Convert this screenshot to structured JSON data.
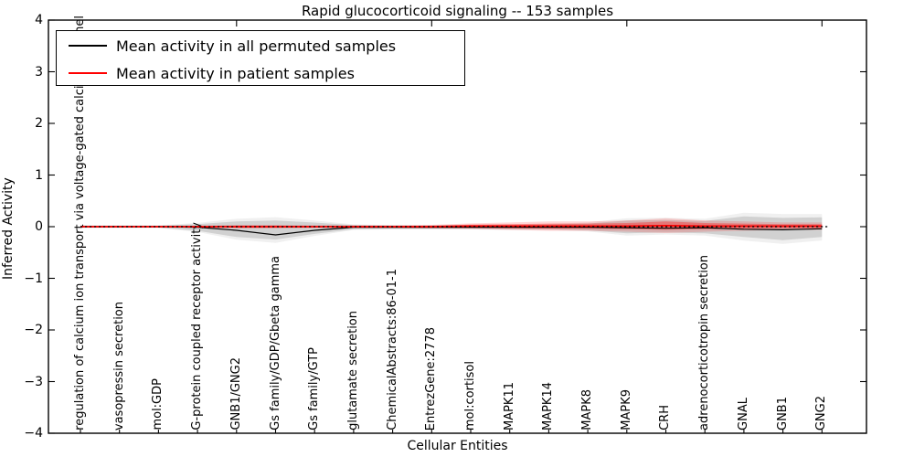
{
  "chart_data": {
    "type": "line",
    "title": "Rapid glucocorticoid signaling -- 153 samples",
    "xlabel": "Cellular Entities",
    "ylabel": "Inferred Activity",
    "ylim": [
      -4,
      4
    ],
    "yticks": [
      4,
      3,
      2,
      1,
      0,
      -1,
      -2,
      -3,
      -4
    ],
    "ytick_labels": [
      "4",
      "3",
      "2",
      "1",
      "0",
      "−1",
      "−2",
      "−3",
      "−4"
    ],
    "grid": false,
    "legend_position": "upper left",
    "categories": [
      "regulation of calcium ion transport via voltage-gated calcium channel",
      "vasopressin secretion",
      "mol:GDP",
      "G-protein coupled receptor activity",
      "GNB1/GNG2",
      "Gs family/GDP/Gbeta gamma",
      "Gs family/GTP",
      "glutamate secretion",
      "ChemicalAbstracts:86-01-1",
      "EntrezGene:2778",
      "mol:cortisol",
      "MAPK11",
      "MAPK14",
      "MAPK8",
      "MAPK9",
      "CRH",
      "adrenocorticotropin secretion",
      "GNAL",
      "GNB1",
      "GNG2"
    ],
    "series": [
      {
        "name": "Mean activity in all permuted samples",
        "color": "#000000",
        "style": "solid",
        "values": [
          0,
          0,
          0,
          -0.01,
          -0.07,
          -0.16,
          -0.07,
          -0.01,
          -0.01,
          -0.01,
          -0.01,
          -0.01,
          -0.01,
          -0.01,
          -0.02,
          -0.03,
          -0.02,
          -0.05,
          -0.06,
          -0.04
        ]
      },
      {
        "name": "Mean activity in patient samples",
        "color": "#ff0000",
        "style": "solid",
        "values": [
          0,
          0,
          0,
          0,
          0,
          0,
          0,
          0,
          0,
          0,
          0.01,
          0.01,
          0.01,
          0.01,
          0.01,
          0.02,
          0.01,
          0.01,
          0.01,
          0.01
        ]
      }
    ],
    "bands": [
      {
        "name": "permuted samples spread",
        "color": "#000000",
        "top": [
          0.02,
          0.02,
          0.02,
          0.05,
          0.1,
          0.12,
          0.08,
          0.03,
          0.02,
          0.02,
          0.03,
          0.03,
          0.04,
          0.06,
          0.12,
          0.13,
          0.11,
          0.2,
          0.17,
          0.18
        ],
        "bottom": [
          -0.02,
          -0.02,
          -0.02,
          -0.08,
          -0.2,
          -0.25,
          -0.14,
          -0.05,
          -0.04,
          -0.04,
          -0.04,
          -0.05,
          -0.05,
          -0.07,
          -0.13,
          -0.11,
          -0.13,
          -0.2,
          -0.26,
          -0.2
        ]
      },
      {
        "name": "patient samples spread",
        "color": "#ff0000",
        "half_width": [
          0.01,
          0.01,
          0.01,
          0.01,
          0.02,
          0.02,
          0.015,
          0.015,
          0.015,
          0.02,
          0.03,
          0.04,
          0.05,
          0.05,
          0.06,
          0.08,
          0.06,
          0.05,
          0.04,
          0.04
        ]
      }
    ],
    "zero_line": {
      "y": 0,
      "style": "dotted",
      "color": "#000000"
    }
  }
}
